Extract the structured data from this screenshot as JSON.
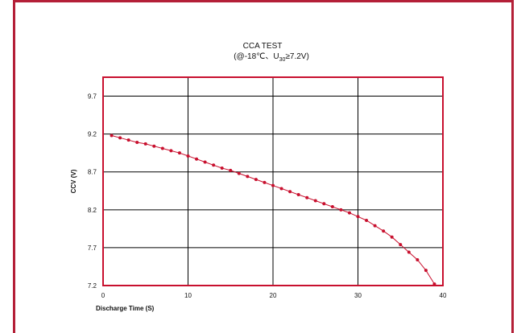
{
  "chart_data": {
    "type": "line",
    "title": "CCA TEST",
    "subtitle_pre": "(@-18℃、U",
    "subtitle_sub": "30",
    "subtitle_post": "≥7.2V)",
    "xlabel": "Discharge Time (S)",
    "ylabel": "CCV (V)",
    "xlim": [
      0,
      40
    ],
    "ylim": [
      7.2,
      9.95
    ],
    "x_ticks": [
      "0",
      "10",
      "20",
      "30",
      "40"
    ],
    "y_ticks": [
      "7.2",
      "7.7",
      "8.2",
      "8.7",
      "9.2",
      "9.7"
    ],
    "grid": true,
    "legend": "none",
    "colors": {
      "line": "#c8102e",
      "frame": "#b41f37",
      "axes": "#c8102e"
    },
    "series": [
      {
        "x": [
          1,
          2,
          3,
          4,
          5,
          6,
          7,
          8,
          9,
          10,
          11,
          12,
          13,
          14,
          15,
          16,
          17,
          18,
          19,
          20,
          21,
          22,
          23,
          24,
          25,
          26,
          27,
          28,
          29,
          30,
          31,
          32,
          33,
          34,
          35,
          36,
          37,
          38,
          39
        ],
        "y": [
          9.18,
          9.15,
          9.12,
          9.09,
          9.07,
          9.04,
          9.01,
          8.98,
          8.95,
          8.91,
          8.87,
          8.83,
          8.79,
          8.75,
          8.72,
          8.68,
          8.64,
          8.6,
          8.56,
          8.52,
          8.48,
          8.44,
          8.4,
          8.36,
          8.32,
          8.28,
          8.24,
          8.2,
          8.16,
          8.11,
          8.06,
          7.99,
          7.92,
          7.84,
          7.74,
          7.64,
          7.54,
          7.4,
          7.22
        ]
      }
    ]
  }
}
